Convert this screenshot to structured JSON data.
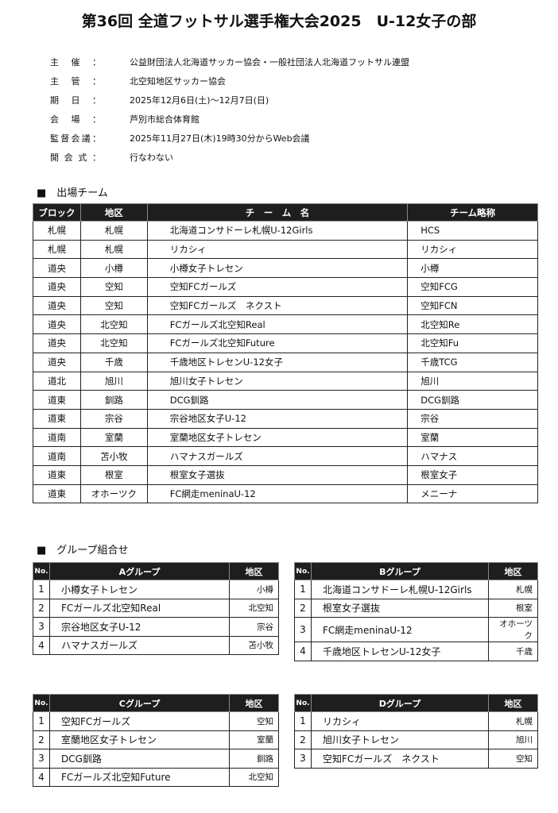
{
  "title": "第36回 全道フットサル選手権大会2025　U-12女子の部",
  "info": [
    {
      "label": [
        "主",
        "催"
      ],
      "value": "公益財団法人北海道サッカー協会・一般社団法人北海道フットサル連盟"
    },
    {
      "label": [
        "主",
        "管"
      ],
      "value": "北空知地区サッカー協会"
    },
    {
      "label": [
        "期",
        "日"
      ],
      "value": "2025年12月6日(土)～12月7日(日)"
    },
    {
      "label": [
        "会",
        "場"
      ],
      "value": "芦別市総合体育館"
    },
    {
      "label": [
        "監",
        "督",
        "会",
        "議"
      ],
      "value": "2025年11月27日(木)19時30分からWeb会議"
    },
    {
      "label": [
        "開",
        "会",
        "式"
      ],
      "value": "行なわない"
    }
  ],
  "colon": "：",
  "teams_heading": "■　出場チーム",
  "teams_headers": [
    "ブロック",
    "地区",
    "チ　ー　ム　名",
    "チーム略称"
  ],
  "teams": [
    [
      "札幌",
      "札幌",
      "北海道コンサドーレ札幌U-12Girls",
      "HCS"
    ],
    [
      "札幌",
      "札幌",
      "リカシィ",
      "リカシィ"
    ],
    [
      "道央",
      "小樽",
      "小樽女子トレセン",
      "小樽"
    ],
    [
      "道央",
      "空知",
      "空知FCガールズ",
      "空知FCG"
    ],
    [
      "道央",
      "空知",
      "空知FCガールズ　ネクスト",
      "空知FCN"
    ],
    [
      "道央",
      "北空知",
      "FCガールズ北空知Real",
      "北空知Re"
    ],
    [
      "道央",
      "北空知",
      "FCガールズ北空知Future",
      "北空知Fu"
    ],
    [
      "道央",
      "千歳",
      "千歳地区トレセンU-12女子",
      "千歳TCG"
    ],
    [
      "道北",
      "旭川",
      "旭川女子トレセン",
      "旭川"
    ],
    [
      "道東",
      "釧路",
      "DCG釧路",
      "DCG釧路"
    ],
    [
      "道東",
      "宗谷",
      "宗谷地区女子U-12",
      "宗谷"
    ],
    [
      "道南",
      "室蘭",
      "室蘭地区女子トレセン",
      "室蘭"
    ],
    [
      "道南",
      "苫小牧",
      "ハマナスガールズ",
      "ハマナス"
    ],
    [
      "道東",
      "根室",
      "根室女子選抜",
      "根室女子"
    ],
    [
      "道東",
      "オホーツク",
      "FC網走meninaU-12",
      "メニーナ"
    ]
  ],
  "groups_heading": "■　グループ組合せ",
  "groups": [
    {
      "no": "No.",
      "name": "Aグループ",
      "area": "地区",
      "rows": [
        [
          "1",
          "小樽女子トレセン",
          "小樽"
        ],
        [
          "2",
          "FCガールズ北空知Real",
          "北空知"
        ],
        [
          "3",
          "宗谷地区女子U-12",
          "宗谷"
        ],
        [
          "4",
          "ハマナスガールズ",
          "苫小牧"
        ]
      ]
    },
    {
      "no": "No.",
      "name": "Bグループ",
      "area": "地区",
      "rows": [
        [
          "1",
          "北海道コンサドーレ札幌U-12Girls",
          "札幌"
        ],
        [
          "2",
          "根室女子選抜",
          "根室"
        ],
        [
          "3",
          "FC網走meninaU-12",
          "オホーツク"
        ],
        [
          "4",
          "千歳地区トレセンU-12女子",
          "千歳"
        ]
      ]
    },
    {
      "no": "No.",
      "name": "Cグループ",
      "area": "地区",
      "rows": [
        [
          "1",
          "空知FCガールズ",
          "空知"
        ],
        [
          "2",
          "室蘭地区女子トレセン",
          "室蘭"
        ],
        [
          "3",
          "DCG釧路",
          "釧路"
        ],
        [
          "4",
          "FCガールズ北空知Future",
          "北空知"
        ]
      ]
    },
    {
      "no": "No.",
      "name": "Dグループ",
      "area": "地区",
      "rows": [
        [
          "1",
          "リカシィ",
          "札幌"
        ],
        [
          "2",
          "旭川女子トレセン",
          "旭川"
        ],
        [
          "3",
          "空知FCガールズ　ネクスト",
          "空知"
        ]
      ]
    }
  ]
}
